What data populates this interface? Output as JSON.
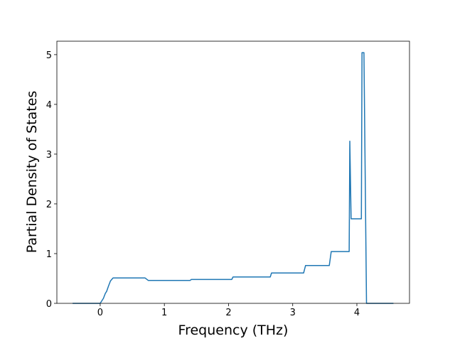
{
  "chart_data": {
    "type": "line",
    "xlabel": "Frequency (THz)",
    "ylabel": "Partial Density of States",
    "x": [
      -0.43,
      0,
      0.05,
      0.08,
      0.1,
      0.13,
      0.16,
      0.2,
      0.7,
      0.75,
      1.4,
      1.42,
      2.05,
      2.07,
      2.65,
      2.67,
      3.17,
      3.2,
      3.57,
      3.6,
      3.88,
      3.89,
      3.91,
      4.07,
      4.08,
      4.11,
      4.15,
      4.57
    ],
    "values": [
      0,
      0,
      0.1,
      0.2,
      0.24,
      0.35,
      0.45,
      0.51,
      0.51,
      0.46,
      0.46,
      0.48,
      0.48,
      0.53,
      0.53,
      0.61,
      0.61,
      0.76,
      0.76,
      1.04,
      1.04,
      3.26,
      1.7,
      1.7,
      5.04,
      5.04,
      0,
      0
    ],
    "color": "#1f77b4",
    "xlim": [
      -0.675,
      4.82
    ],
    "ylim": [
      0,
      5.27
    ],
    "xticks": [
      0,
      1,
      2,
      3,
      4
    ],
    "yticks": [
      0,
      1,
      2,
      3,
      4,
      5
    ]
  }
}
